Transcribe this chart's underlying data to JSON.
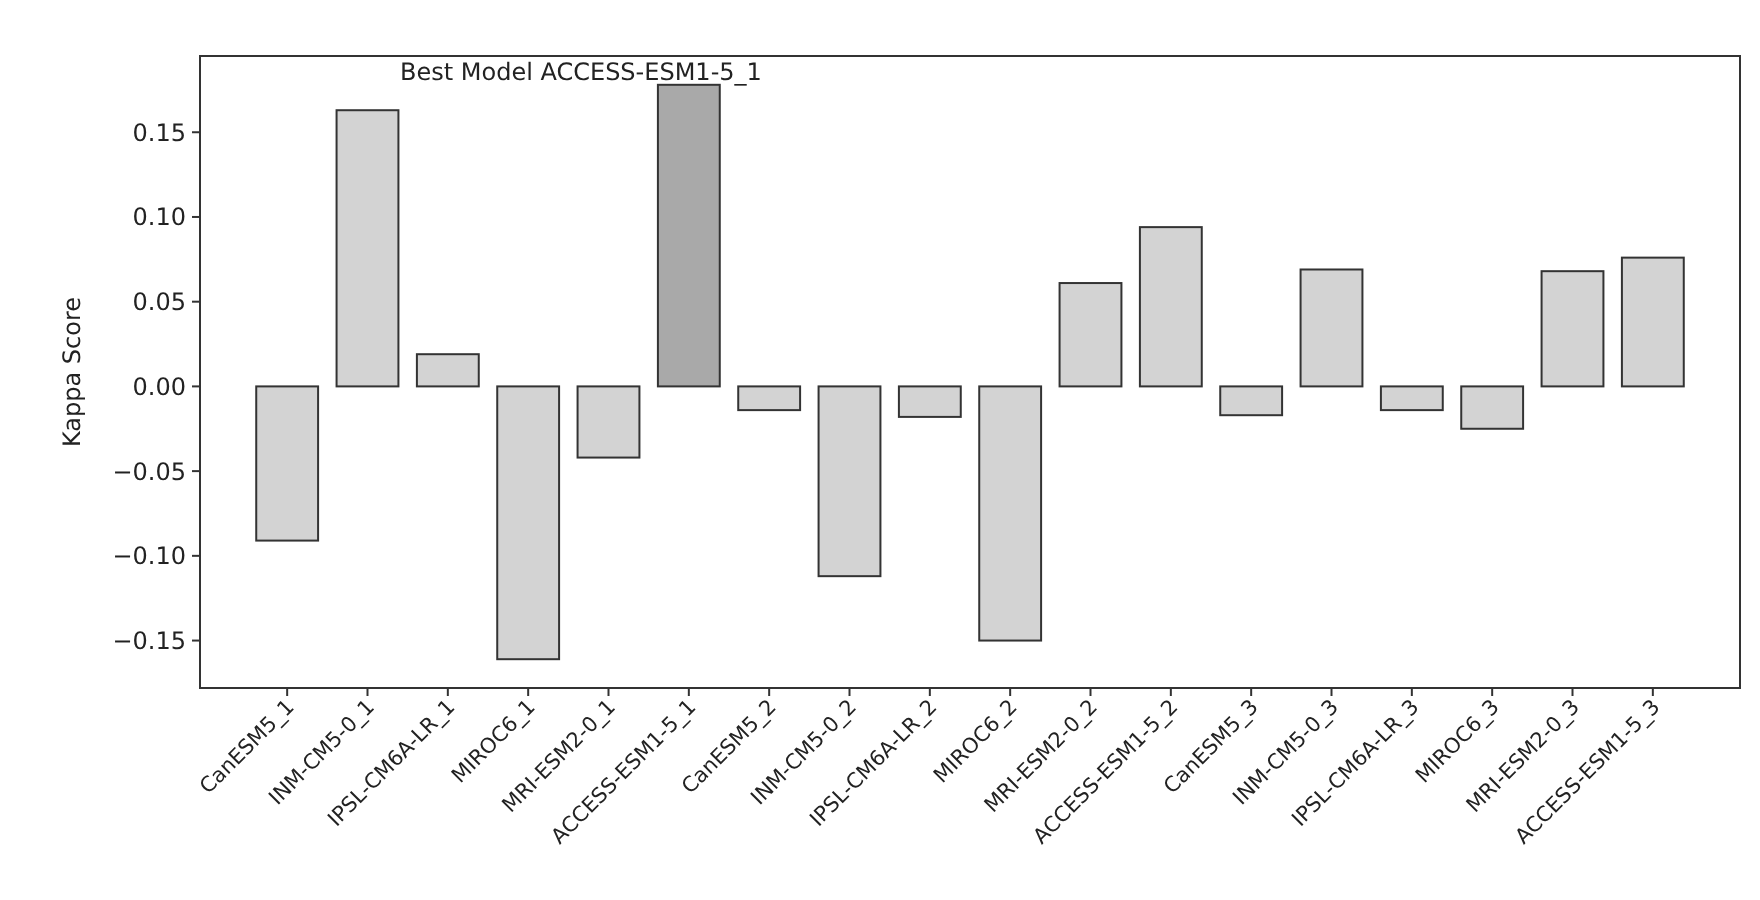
{
  "chart_data": {
    "type": "bar",
    "ylabel": "Kappa Score",
    "annotations": [
      "Best Model  ACCESS-ESM1-5_1"
    ],
    "categories": [
      "CanESM5_1",
      "INM-CM5-0_1",
      "IPSL-CM6A-LR_1",
      "MIROC6_1",
      "MRI-ESM2-0_1",
      "ACCESS-ESM1-5_1",
      "CanESM5_2",
      "INM-CM5-0_2",
      "IPSL-CM6A-LR_2",
      "MIROC6_2",
      "MRI-ESM2-0_2",
      "ACCESS-ESM1-5_2",
      "CanESM5_3",
      "INM-CM5-0_3",
      "IPSL-CM6A-LR_3",
      "MIROC6_3",
      "MRI-ESM2-0_3",
      "ACCESS-ESM1-5_3"
    ],
    "values": [
      -0.091,
      0.163,
      0.019,
      -0.161,
      -0.042,
      0.178,
      -0.014,
      -0.112,
      -0.018,
      -0.15,
      0.061,
      0.094,
      -0.017,
      0.069,
      -0.014,
      -0.025,
      0.068,
      0.076
    ],
    "colors": [
      "#d3d3d3",
      "#d3d3d3",
      "#d3d3d3",
      "#d3d3d3",
      "#d3d3d3",
      "#a9a9a9",
      "#d3d3d3",
      "#d3d3d3",
      "#d3d3d3",
      "#d3d3d3",
      "#d3d3d3",
      "#d3d3d3",
      "#d3d3d3",
      "#d3d3d3",
      "#d3d3d3",
      "#d3d3d3",
      "#d3d3d3",
      "#d3d3d3"
    ],
    "ylim": [
      -0.178,
      0.195
    ],
    "yticks": [
      {
        "value": -0.15,
        "label": "−0.15"
      },
      {
        "value": -0.1,
        "label": "−0.10"
      },
      {
        "value": -0.05,
        "label": "−0.05"
      },
      {
        "value": 0,
        "label": "0.00"
      },
      {
        "value": 0.05,
        "label": "0.05"
      },
      {
        "value": 0.1,
        "label": "0.10"
      },
      {
        "value": 0.15,
        "label": "0.15"
      }
    ],
    "grid": false
  }
}
